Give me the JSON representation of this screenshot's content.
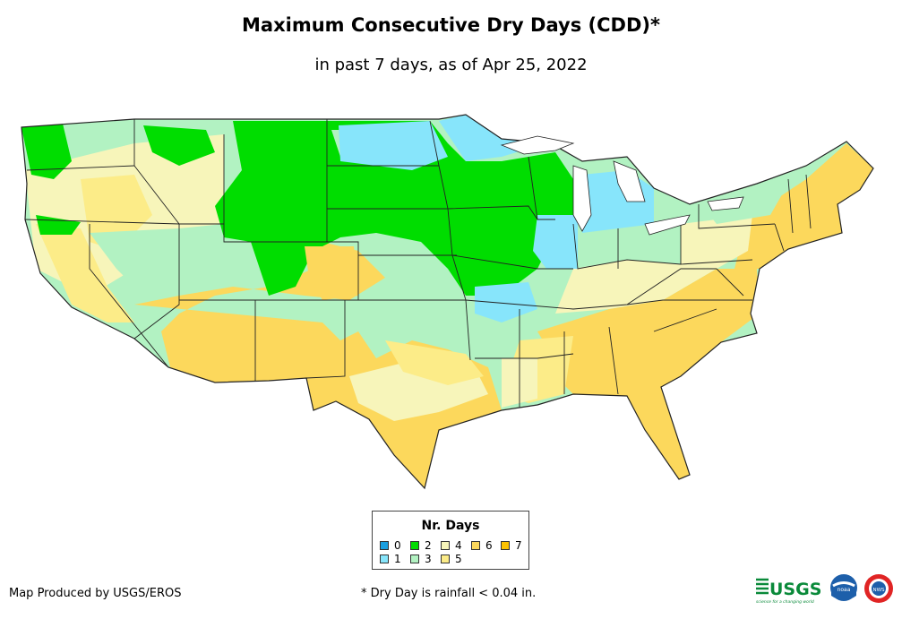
{
  "title": "Maximum Consecutive Dry Days (CDD)*",
  "subtitle": "in past 7 days, as of Apr 25, 2022",
  "legend": {
    "title": "Nr. Days",
    "items": [
      {
        "label": "0",
        "color": "#1a9fe0"
      },
      {
        "label": "1",
        "color": "#87e5fb"
      },
      {
        "label": "2",
        "color": "#00dd00"
      },
      {
        "label": "3",
        "color": "#b2f2c2"
      },
      {
        "label": "4",
        "color": "#f7f5ba"
      },
      {
        "label": "5",
        "color": "#fcec88"
      },
      {
        "label": "6",
        "color": "#fcd85c"
      },
      {
        "label": "7",
        "color": "#fcc200"
      }
    ]
  },
  "credit": "Map Produced by USGS/EROS",
  "footnote": "* Dry Day is rainfall < 0.04 in.",
  "logos": {
    "usgs": "USGS",
    "usgs_tagline": "science for a changing world",
    "noaa": "noaa",
    "nws": "NWS"
  }
}
